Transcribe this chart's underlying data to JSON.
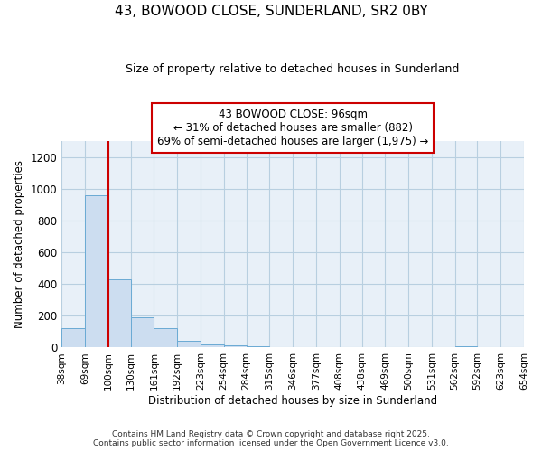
{
  "title_line1": "43, BOWOOD CLOSE, SUNDERLAND, SR2 0BY",
  "title_line2": "Size of property relative to detached houses in Sunderland",
  "xlabel": "Distribution of detached houses by size in Sunderland",
  "ylabel": "Number of detached properties",
  "bar_color": "#ccddf0",
  "bar_edge_color": "#6aaad4",
  "grid_color": "#b8cfe0",
  "plot_bg_color": "#e8f0f8",
  "fig_bg_color": "#ffffff",
  "red_line_color": "#cc0000",
  "red_line_x": 100,
  "annotation_text": "43 BOWOOD CLOSE: 96sqm\n← 31% of detached houses are smaller (882)\n69% of semi-detached houses are larger (1,975) →",
  "annotation_box_color": "#cc0000",
  "bin_edges": [
    38,
    69,
    100,
    130,
    161,
    192,
    223,
    254,
    284,
    315,
    346,
    377,
    408,
    438,
    469,
    500,
    531,
    562,
    592,
    623,
    654
  ],
  "bar_heights": [
    120,
    960,
    430,
    190,
    120,
    40,
    20,
    15,
    10,
    0,
    0,
    0,
    0,
    0,
    0,
    0,
    0,
    10,
    0,
    0
  ],
  "ylim": [
    0,
    1300
  ],
  "yticks": [
    0,
    200,
    400,
    600,
    800,
    1000,
    1200
  ],
  "footer_line1": "Contains HM Land Registry data © Crown copyright and database right 2025.",
  "footer_line2": "Contains public sector information licensed under the Open Government Licence v3.0."
}
